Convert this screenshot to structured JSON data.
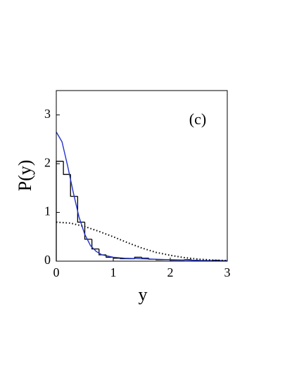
{
  "chart_data": {
    "type": "histogram",
    "xlabel": "y",
    "ylabel": "P(y)",
    "annotation": "(c)",
    "bins": [
      0,
      0.125,
      0.25,
      0.375,
      0.5,
      0.625,
      0.75,
      0.875,
      1.0,
      1.125,
      1.25,
      1.375,
      1.5,
      1.625,
      1.75,
      1.875,
      2.0,
      2.125,
      2.25,
      2.375,
      2.5,
      2.625,
      2.75,
      2.875,
      3.0
    ],
    "values": [
      2.05,
      1.78,
      1.33,
      0.8,
      0.45,
      0.25,
      0.13,
      0.08,
      0.06,
      0.05,
      0.05,
      0.08,
      0.06,
      0.04,
      0.03,
      0.03,
      0.02,
      0.02,
      0.03,
      0.02,
      0.01,
      0.01,
      0.02,
      0.01
    ],
    "color": "#000000",
    "series": [
      {
        "color": "#2233cc",
        "style": "solid",
        "x": [
          0,
          0.1,
          0.2,
          0.3,
          0.4,
          0.5,
          0.6,
          0.7,
          0.8,
          1.0,
          1.2,
          1.5,
          2.0,
          2.5,
          3.0
        ],
        "values": [
          2.65,
          2.45,
          1.95,
          1.4,
          0.9,
          0.55,
          0.32,
          0.2,
          0.13,
          0.08,
          0.06,
          0.05,
          0.03,
          0.015,
          0.01
        ]
      },
      {
        "color": "#000000",
        "style": "dotted",
        "x": [
          0,
          0.25,
          0.5,
          0.75,
          1.0,
          1.25,
          1.5,
          1.75,
          2.0,
          2.25,
          2.5,
          2.75,
          3.0
        ],
        "values": [
          0.8,
          0.78,
          0.71,
          0.61,
          0.5,
          0.38,
          0.27,
          0.18,
          0.12,
          0.072,
          0.041,
          0.022,
          0.011
        ]
      }
    ],
    "xlim": [
      0,
      3
    ],
    "ylim": [
      0,
      3.5
    ],
    "xticks": [
      0,
      1,
      2,
      3
    ],
    "yticks": [
      0,
      1,
      2,
      3
    ]
  }
}
